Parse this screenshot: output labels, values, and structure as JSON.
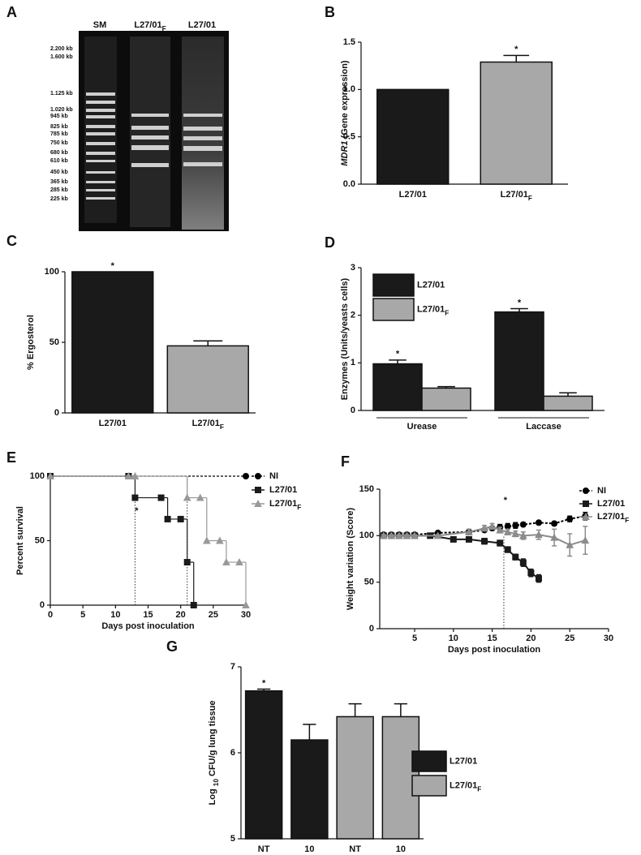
{
  "gel": {
    "label": "A",
    "lanes": [
      "SM",
      [
        {
          "text": "L27/01"
        },
        {
          "text": "F",
          "style": "sub"
        }
      ],
      "L27/01"
    ],
    "markers": [
      "2.200 kb",
      "1.600 kb",
      "1.125 kb",
      "1.020 kb",
      "945 kb",
      "825 kb",
      "785 kb",
      "750 kb",
      "680 kb",
      "610 kb",
      "450 kb",
      "365 kb",
      "285 kb",
      "225 kb"
    ]
  },
  "chart_data": [
    {
      "type": "bar",
      "label": "B",
      "categories": [
        "L27/01",
        [
          {
            "text": "L27/01"
          },
          {
            "text": "F",
            "style": "sub"
          }
        ]
      ],
      "values": [
        1.0,
        1.29
      ],
      "errors": [
        null,
        0.07
      ],
      "colors": [
        "#1a1a1a",
        "#a8a8a8"
      ],
      "ylim": [
        0,
        1.5
      ],
      "yticks": [
        {
          "value": 0,
          "label": "0.0"
        },
        0.5,
        {
          "value": 1,
          "label": "1.0"
        },
        1.5
      ],
      "y_label": [
        {
          "text": "MDR1",
          "style": "italic"
        },
        {
          "text": " (Gene expression)"
        }
      ],
      "annotations": [
        {
          "text": "*",
          "index": 1
        }
      ]
    },
    {
      "type": "bar",
      "label": "C",
      "categories": [
        "L27/01",
        [
          {
            "text": "L27/01"
          },
          {
            "text": "F",
            "style": "sub"
          }
        ]
      ],
      "values": [
        100,
        47.5
      ],
      "errors": [
        null,
        3.5
      ],
      "colors": [
        "#1a1a1a",
        "#a8a8a8"
      ],
      "ylim": [
        0,
        100
      ],
      "yticks": [
        0,
        50,
        100
      ],
      "y_label": "% Ergosterol",
      "annotations": [
        {
          "text": "*",
          "index": 0
        }
      ]
    },
    {
      "type": "bar",
      "label": "D",
      "categories": [
        "Urease",
        "Laccase"
      ],
      "series": [
        {
          "name": "L27/01",
          "color": "#1a1a1a",
          "values": [
            0.98,
            2.07
          ],
          "errors": [
            0.08,
            0.07
          ]
        },
        {
          "name": [
            {
              "text": "L27/01"
            },
            {
              "text": "F",
              "style": "sub"
            }
          ],
          "color": "#a8a8a8",
          "values": [
            0.47,
            0.3
          ],
          "errors": [
            0.03,
            0.07
          ]
        }
      ],
      "ylim": [
        0,
        3
      ],
      "yticks": [
        0,
        1,
        2,
        3
      ],
      "y_label": "Enzymes (Units/yeasts cells)",
      "legend": "upper left",
      "annotations": [
        {
          "text": "*",
          "series": 0,
          "index": 0
        },
        {
          "text": "*",
          "series": 0,
          "index": 1
        }
      ]
    },
    {
      "type": "line",
      "label": "E",
      "step": true,
      "xlim": [
        0,
        30
      ],
      "xticks": [
        0,
        5,
        10,
        15,
        20,
        25,
        30
      ],
      "ylim": [
        0,
        100
      ],
      "yticks": [
        0,
        50,
        100
      ],
      "x_label": "Days post inoculation",
      "y_label": "Percent survival",
      "legend": "right",
      "vlines": [
        13,
        21
      ],
      "annotations": [
        {
          "text": "*",
          "x": 13
        }
      ],
      "series": [
        {
          "name": "NI",
          "color": "#000000",
          "marker": "circle",
          "line_style": "dashed",
          "x": [
            0,
            30
          ],
          "values": [
            100,
            100
          ]
        },
        {
          "name": "L27/01",
          "color": "#1a1a1a",
          "marker": "square",
          "line_style": "solid",
          "x": [
            0,
            12,
            13,
            17,
            18,
            20,
            21,
            22
          ],
          "values": [
            100,
            100,
            83.3,
            83.3,
            66.7,
            66.7,
            33.3,
            0
          ]
        },
        {
          "name": [
            {
              "text": "L27/01"
            },
            {
              "text": "F",
              "style": "sub"
            }
          ],
          "color": "#999999",
          "marker": "triangle",
          "line_style": "solid",
          "x": [
            0,
            12,
            13,
            21,
            23,
            24,
            26,
            27,
            29,
            30
          ],
          "values": [
            100,
            100,
            100,
            83.3,
            83.3,
            50,
            50,
            33.3,
            33.3,
            0
          ]
        }
      ]
    },
    {
      "type": "line",
      "label": "F",
      "xlim": [
        0.5,
        30
      ],
      "xticks": [
        5,
        10,
        15,
        20,
        25,
        30
      ],
      "ylim": [
        0,
        150
      ],
      "yticks": [
        0,
        50,
        100,
        150
      ],
      "x_label": "Days post inoculation",
      "y_label": "Weight variation (Score)",
      "legend": "right",
      "vlines": [
        16.5
      ],
      "annotations": [
        {
          "text": "*",
          "x": 16.5
        }
      ],
      "series": [
        {
          "name": "NI",
          "color": "#000000",
          "marker": "circle",
          "line_style": "dashed",
          "x": [
            1,
            2,
            3,
            4,
            5,
            8,
            12,
            14,
            15,
            16,
            17,
            18,
            19,
            21,
            23,
            25,
            27
          ],
          "values": [
            101,
            101,
            101,
            101,
            101,
            103,
            104,
            106,
            108,
            109,
            110,
            111,
            112,
            114,
            113,
            118,
            121
          ],
          "errors": [
            1,
            1,
            1,
            1,
            1,
            1,
            2,
            2,
            2,
            3,
            3,
            3,
            2,
            2,
            2,
            3,
            4
          ]
        },
        {
          "name": "L27/01",
          "color": "#1a1a1a",
          "marker": "square",
          "line_style": "solid",
          "x": [
            1,
            2,
            3,
            4,
            5,
            7,
            10,
            12,
            14,
            16,
            17,
            18,
            19,
            20,
            21
          ],
          "values": [
            100,
            100,
            100,
            100,
            100,
            100,
            96,
            96,
            94,
            92,
            85,
            77,
            71,
            60,
            54
          ],
          "errors": [
            1,
            1,
            1,
            1,
            1,
            1,
            2,
            2,
            3,
            3,
            3,
            3,
            4,
            4,
            4
          ]
        },
        {
          "name": [
            {
              "text": "L27/01"
            },
            {
              "text": "F",
              "style": "sub"
            }
          ],
          "color": "#8c8c8c",
          "marker": "triangle",
          "line_style": "solid",
          "x": [
            1,
            2,
            3,
            4,
            5,
            8,
            12,
            14,
            15,
            16,
            17,
            18,
            19,
            21,
            23,
            25,
            27
          ],
          "values": [
            100,
            100,
            100,
            100,
            100,
            100,
            104,
            108,
            110,
            106,
            104,
            102,
            100,
            101,
            98,
            90,
            95
          ],
          "errors": [
            1,
            1,
            1,
            1,
            1,
            1,
            3,
            3,
            3,
            3,
            3,
            3,
            4,
            5,
            9,
            12,
            15
          ]
        }
      ]
    },
    {
      "type": "bar",
      "label": "G",
      "categories": [
        "NT",
        "10",
        "NT",
        "10"
      ],
      "series": [
        {
          "name": "L27/01",
          "color": "#1a1a1a",
          "values": [
            6.72,
            6.15,
            null,
            null
          ],
          "errors": [
            0.02,
            0.18,
            null,
            null
          ]
        },
        {
          "name": [
            {
              "text": "L27/01"
            },
            {
              "text": "F",
              "style": "sub"
            }
          ],
          "color": "#a8a8a8",
          "values": [
            null,
            null,
            6.42,
            6.42
          ],
          "errors": [
            null,
            null,
            0.15,
            0.15
          ]
        }
      ],
      "ylim": [
        5,
        7
      ],
      "yticks": [
        5,
        6,
        7
      ],
      "y_label": [
        {
          "text": "Log "
        },
        {
          "text": "10",
          "style": "sub"
        },
        {
          "text": " CFU/g lung tissue"
        }
      ],
      "legend": "right",
      "annotations": [
        {
          "text": "*",
          "series": 0,
          "index": 0
        }
      ]
    }
  ]
}
